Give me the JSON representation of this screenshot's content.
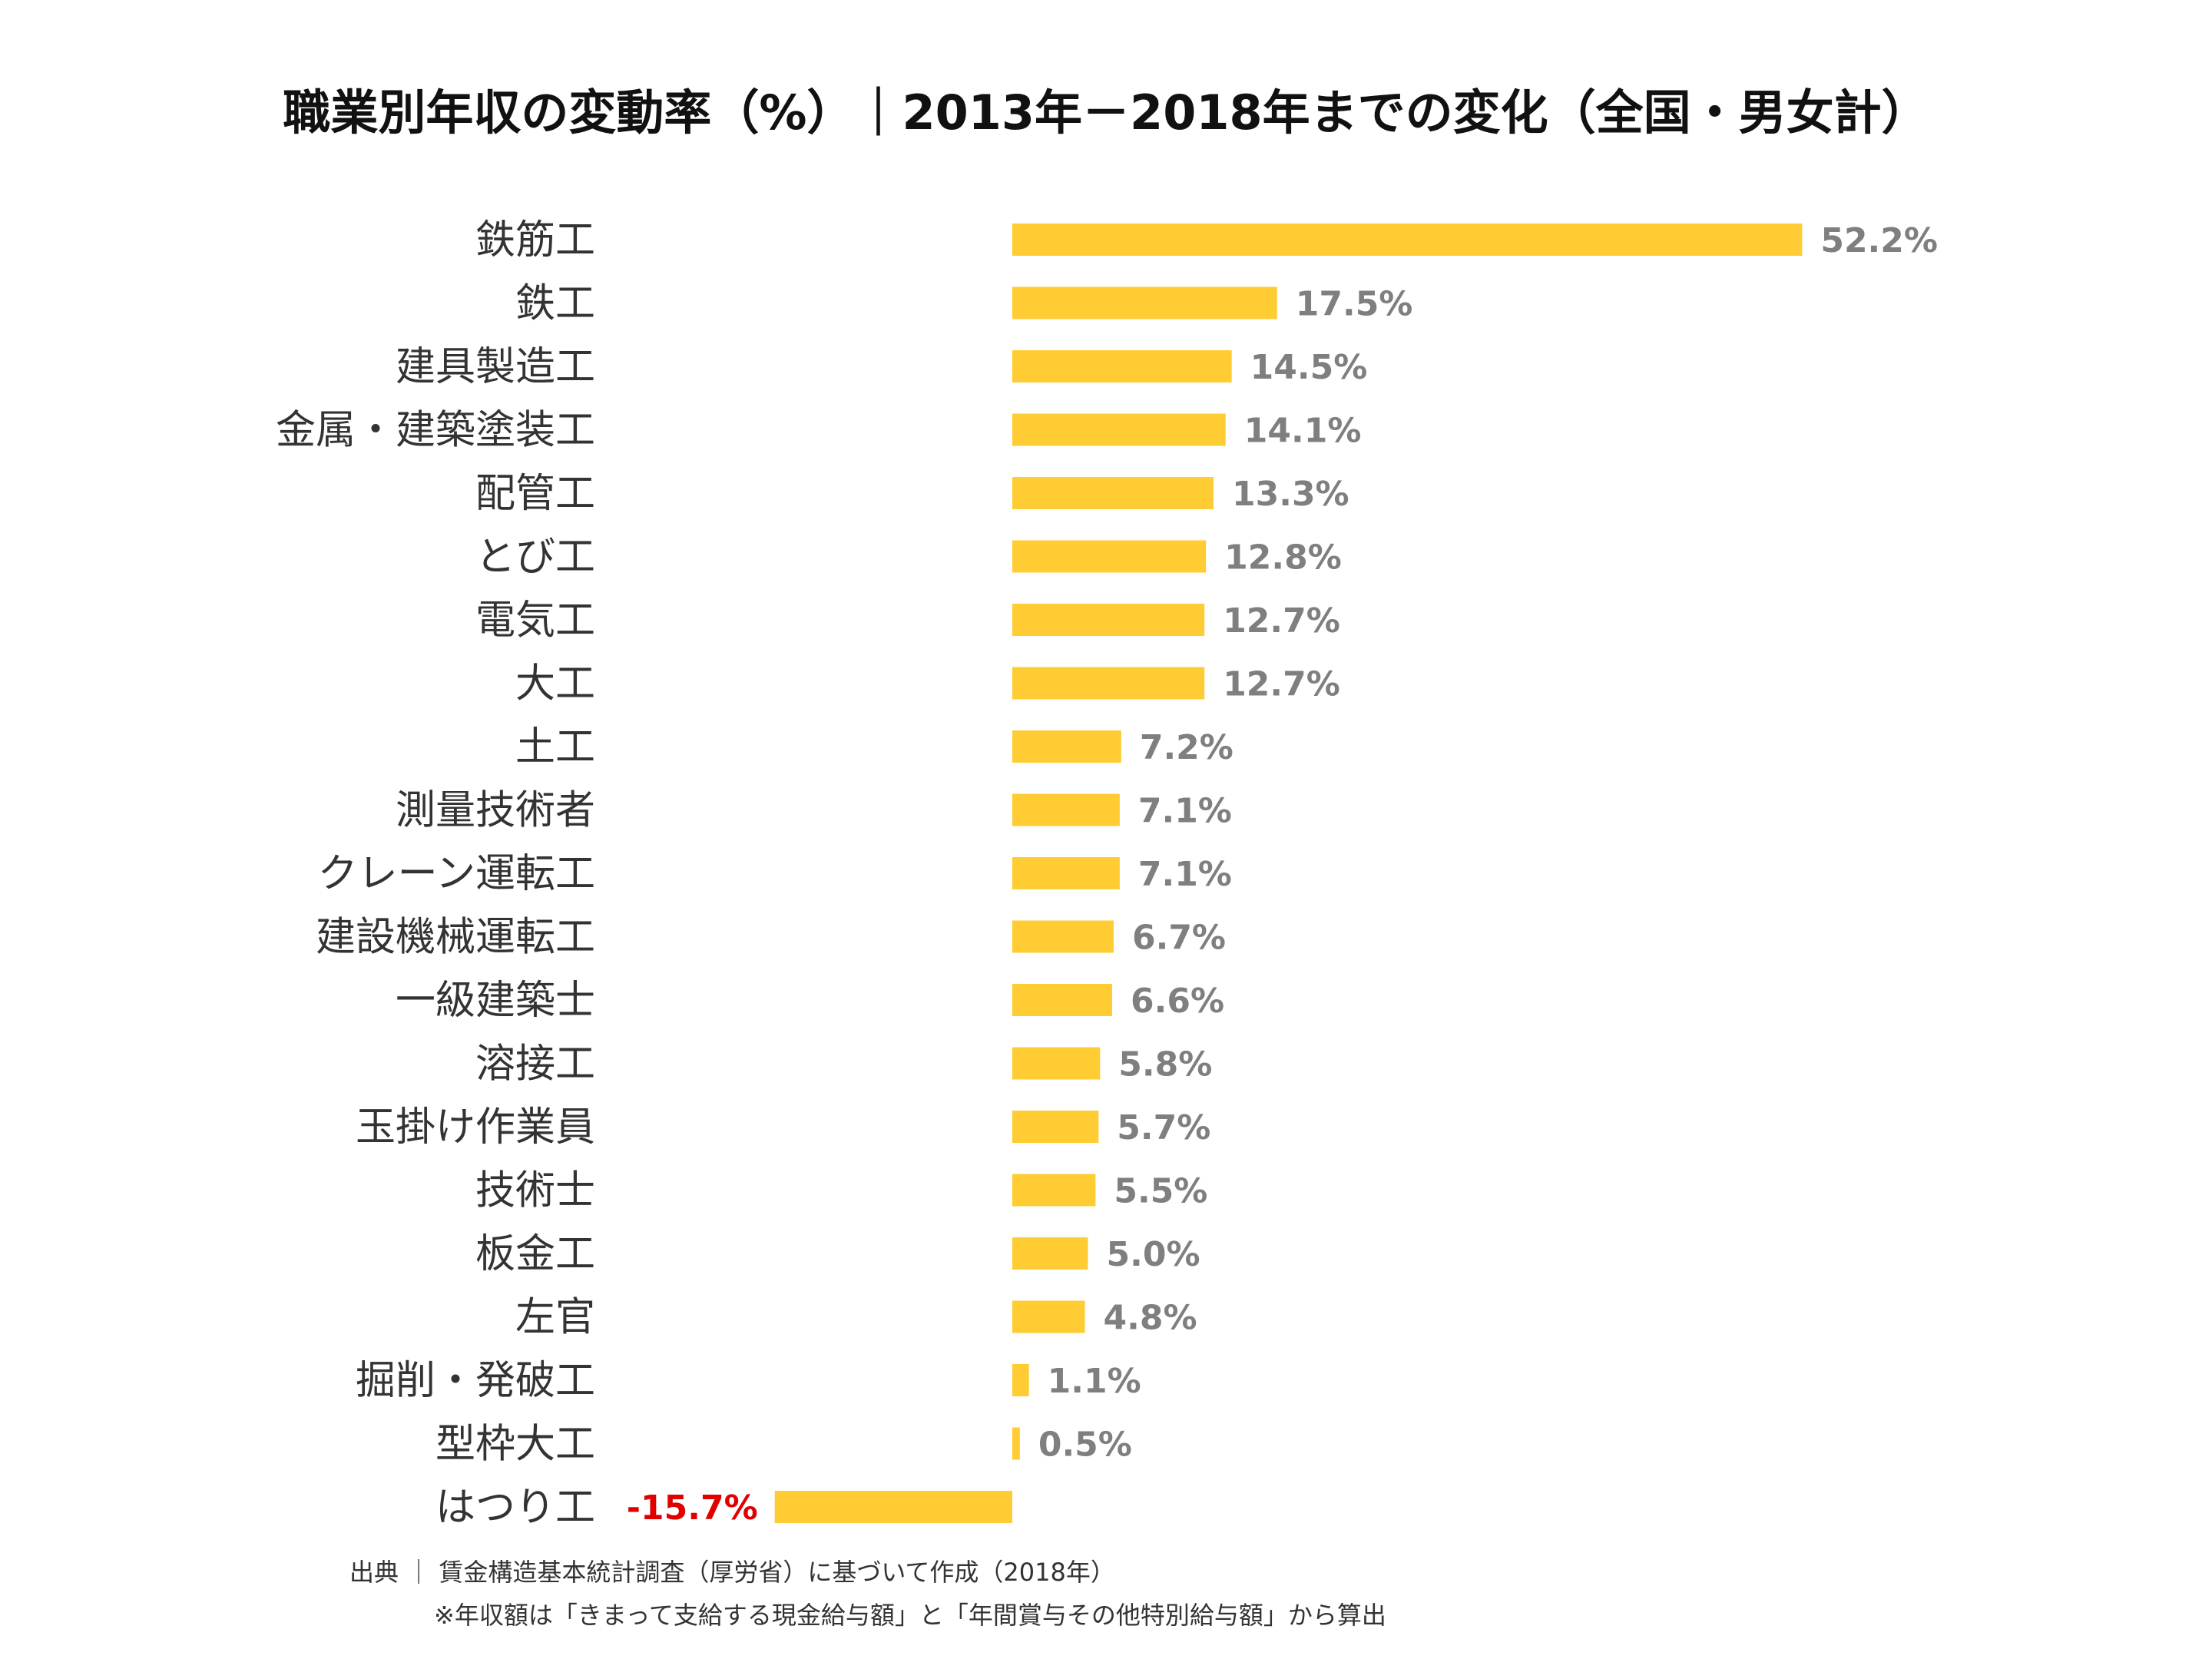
{
  "chart_data": {
    "type": "bar",
    "orientation": "horizontal",
    "title": "職業別年収の変動率（%）｜2013年－2018年までの変化（全国・男女計）",
    "categories": [
      "鉄筋工",
      "鉄工",
      "建具製造工",
      "金属・建築塗装工",
      "配管工",
      "とび工",
      "電気工",
      "大工",
      "土工",
      "測量技術者",
      "クレーン運転工",
      "建設機械運転工",
      "一級建築士",
      "溶接工",
      "玉掛け作業員",
      "技術士",
      "板金工",
      "左官",
      "掘削・発破工",
      "型枠大工",
      "はつり工"
    ],
    "values": [
      52.2,
      17.5,
      14.5,
      14.1,
      13.3,
      12.8,
      12.7,
      12.7,
      7.2,
      7.1,
      7.1,
      6.7,
      6.6,
      5.8,
      5.7,
      5.5,
      5.0,
      4.8,
      1.1,
      0.5,
      -15.7
    ],
    "value_labels": [
      "52.2%",
      "17.5%",
      "14.5%",
      "14.1%",
      "13.3%",
      "12.8%",
      "12.7%",
      "12.7%",
      "7.2%",
      "7.1%",
      "7.1%",
      "6.7%",
      "6.6%",
      "5.8%",
      "5.7%",
      "5.5%",
      "5.0%",
      "4.8%",
      "1.1%",
      "0.5%",
      "-15.7%"
    ],
    "bar_color": "#FFCC33",
    "label_color": "#7F7F7F",
    "negative_label_color": "#E00000",
    "grid": false,
    "legend": "none"
  },
  "footnotes": {
    "source": "出典 ｜ 賃金構造基本統計調査（厚労省）に基づいて作成（2018年）",
    "note": "※年収額は「きまって支給する現金給与額」と「年間賞与その他特別給与額」から算出"
  }
}
